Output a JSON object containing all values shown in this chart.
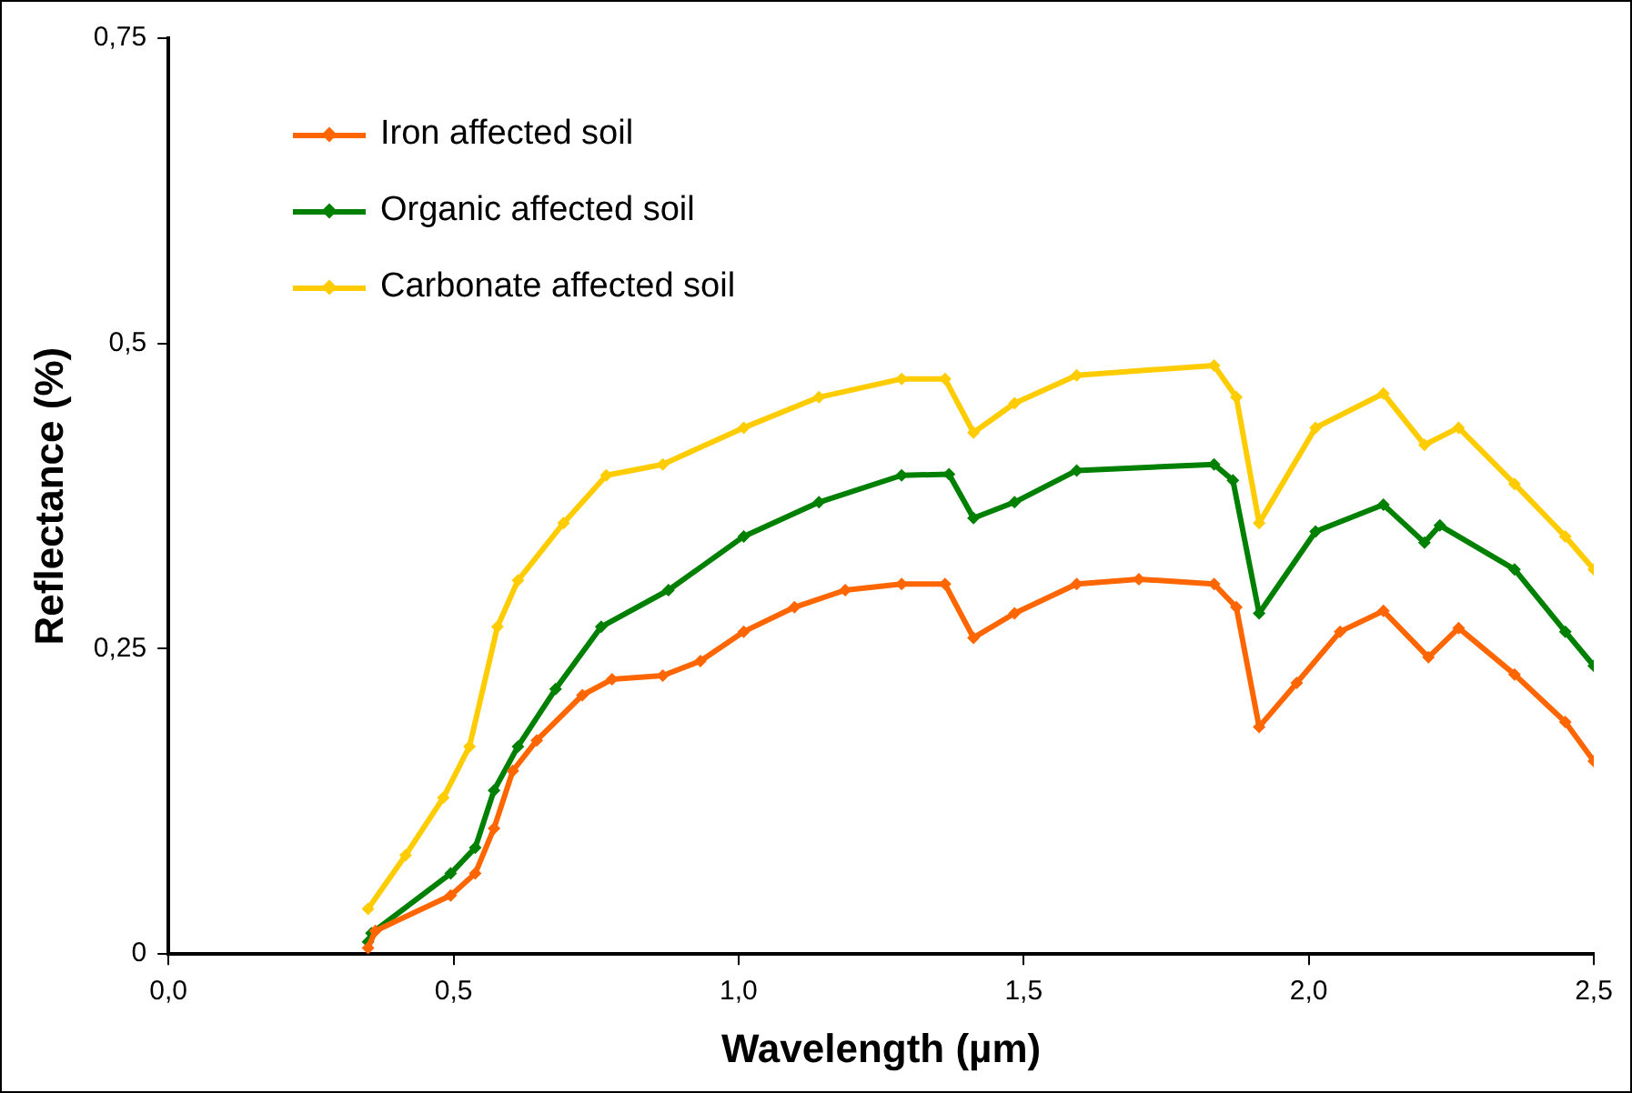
{
  "chart_data": {
    "type": "line",
    "xlabel": "Wavelength (µm)",
    "ylabel": "Reflectance (%)",
    "xlim": [
      0,
      2.5
    ],
    "xticks": [
      {
        "value": 0,
        "label": "0,0"
      },
      {
        "value": 0.5,
        "label": "0,5"
      },
      {
        "value": 1,
        "label": "1,0"
      },
      {
        "value": 1.5,
        "label": "1,5"
      },
      {
        "value": 2,
        "label": "2,0"
      },
      {
        "value": 2.5,
        "label": "2,5"
      }
    ],
    "ylim": [
      0,
      0.75
    ],
    "yticks": [
      0,
      {
        "value": 0.25,
        "label": "0,25"
      },
      {
        "value": 0.5,
        "label": "0,5"
      },
      {
        "value": 0.75,
        "label": "0,75"
      }
    ],
    "grid": false,
    "legend": "top left",
    "marker": "diamond",
    "line_style": "solid",
    "series": [
      {
        "name": "Iron affected soil",
        "color": "#ff6600",
        "x": [
          0.35,
          0.363,
          0.495,
          0.538,
          0.571,
          0.604,
          0.646,
          0.726,
          0.778,
          0.867,
          0.933,
          1.009,
          1.098,
          1.187,
          1.286,
          1.362,
          1.412,
          1.484,
          1.593,
          1.702,
          1.834,
          1.873,
          1.913,
          1.979,
          2.055,
          2.131,
          2.21,
          2.263,
          2.361,
          2.45,
          2.5
        ],
        "values": [
          0.005,
          0.019,
          0.048,
          0.066,
          0.103,
          0.15,
          0.175,
          0.212,
          0.225,
          0.228,
          0.24,
          0.264,
          0.284,
          0.298,
          0.303,
          0.303,
          0.259,
          0.279,
          0.303,
          0.307,
          0.303,
          0.284,
          0.186,
          0.222,
          0.264,
          0.281,
          0.243,
          0.267,
          0.229,
          0.19,
          0.158
        ]
      },
      {
        "name": "Organic affected soil",
        "color": "#008000",
        "x": [
          0.35,
          0.356,
          0.495,
          0.538,
          0.571,
          0.613,
          0.679,
          0.759,
          0.877,
          1.009,
          1.141,
          1.286,
          1.369,
          1.412,
          1.484,
          1.593,
          1.834,
          1.867,
          1.913,
          2.012,
          2.131,
          2.203,
          2.23,
          2.361,
          2.45,
          2.5
        ],
        "values": [
          0.01,
          0.017,
          0.066,
          0.087,
          0.134,
          0.17,
          0.217,
          0.268,
          0.298,
          0.342,
          0.37,
          0.392,
          0.393,
          0.357,
          0.37,
          0.396,
          0.401,
          0.388,
          0.279,
          0.346,
          0.368,
          0.337,
          0.351,
          0.315,
          0.264,
          0.236
        ]
      },
      {
        "name": "Carbonate affected soil",
        "color": "#ffcc00",
        "x": [
          0.35,
          0.416,
          0.482,
          0.528,
          0.577,
          0.613,
          0.693,
          0.768,
          0.867,
          1.009,
          1.141,
          1.286,
          1.362,
          1.412,
          1.484,
          1.593,
          1.834,
          1.873,
          1.913,
          2.012,
          2.131,
          2.203,
          2.263,
          2.361,
          2.45,
          2.5
        ],
        "values": [
          0.037,
          0.081,
          0.128,
          0.17,
          0.268,
          0.306,
          0.353,
          0.392,
          0.401,
          0.431,
          0.456,
          0.471,
          0.471,
          0.427,
          0.451,
          0.474,
          0.482,
          0.456,
          0.353,
          0.431,
          0.459,
          0.417,
          0.431,
          0.385,
          0.342,
          0.315
        ]
      }
    ]
  }
}
